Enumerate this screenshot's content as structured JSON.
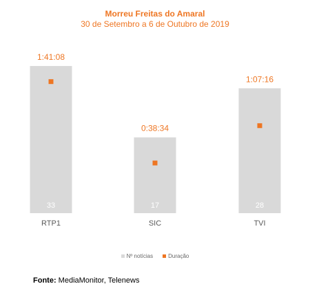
{
  "chart_data": {
    "type": "bar",
    "title": "Morreu Freitas do Amaral",
    "subtitle": "30 de Setembro a 6 de Outubro de 2019",
    "categories": [
      "RTP1",
      "SIC",
      "TVI"
    ],
    "series": [
      {
        "name": "Nº notícias",
        "values": [
          33,
          17,
          28
        ],
        "color": "#d9d9d9",
        "mark": "bar"
      },
      {
        "name": "Duração",
        "values": [
          "1:41:08",
          "0:38:34",
          "1:07:16"
        ],
        "seconds": [
          6068,
          2314,
          4036
        ],
        "color": "#ee7623",
        "mark": "square-marker"
      }
    ],
    "bar_ylim": [
      0,
      35
    ],
    "duration_ylim": [
      0,
      7200
    ],
    "legend_position": "bottom",
    "grid": false
  },
  "source": {
    "label": "Fonte:",
    "text": "MediaMonitor, Telenews"
  }
}
